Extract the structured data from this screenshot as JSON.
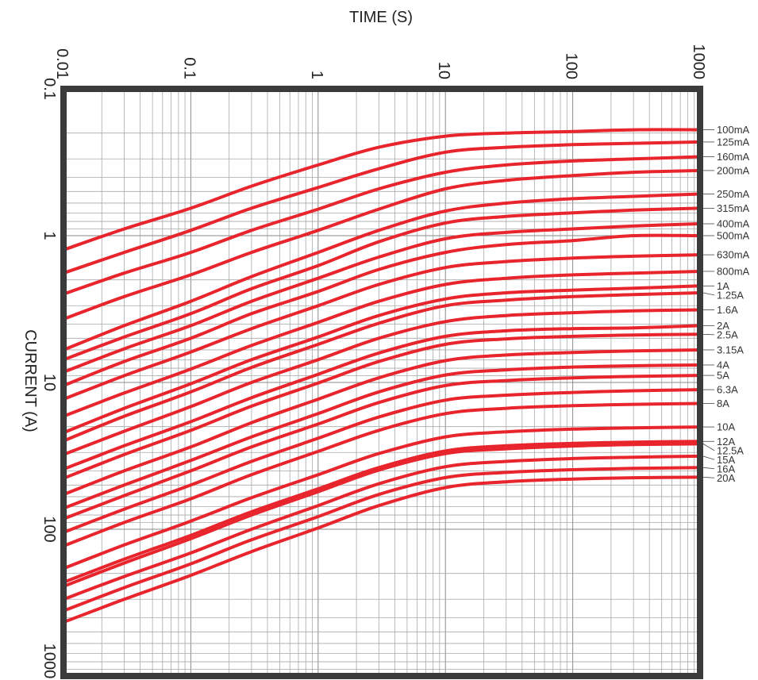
{
  "chart_data": {
    "type": "line",
    "title": "",
    "xlabel": "TIME (S)",
    "ylabel": "CURRENT (A)",
    "x_scale": "log",
    "y_scale": "log",
    "x_axis_position": "top",
    "y_axis_inverted": true,
    "xlim": [
      0.01,
      1000
    ],
    "ylim": [
      0.1,
      1000
    ],
    "x_ticks": [
      "0.01",
      "0.1",
      "1",
      "10",
      "100",
      "1000"
    ],
    "y_ticks": [
      "0.1",
      "1",
      "10",
      "100",
      "1000"
    ],
    "grid": true,
    "legend": "labels at right edge of each curve",
    "line_color": "#e8242c",
    "frame_color": "#3b3b3b",
    "x": [
      0.01,
      0.03,
      0.1,
      0.3,
      1,
      3,
      10,
      30,
      100,
      300,
      1000
    ],
    "series": [
      {
        "name": "100mA",
        "values": [
          1.25,
          0.9,
          0.65,
          0.46,
          0.33,
          0.25,
          0.21,
          0.2,
          0.195,
          0.19,
          0.19
        ]
      },
      {
        "name": "125mA",
        "values": [
          1.8,
          1.3,
          0.92,
          0.65,
          0.47,
          0.35,
          0.27,
          0.25,
          0.24,
          0.235,
          0.23
        ]
      },
      {
        "name": "160mA",
        "values": [
          2.5,
          1.8,
          1.3,
          0.92,
          0.66,
          0.48,
          0.37,
          0.33,
          0.31,
          0.3,
          0.29
        ]
      },
      {
        "name": "200mA",
        "values": [
          3.7,
          2.6,
          1.85,
          1.3,
          0.92,
          0.66,
          0.48,
          0.42,
          0.39,
          0.37,
          0.36
        ]
      },
      {
        "name": "250mA",
        "values": [
          6.0,
          4.1,
          2.8,
          1.9,
          1.3,
          0.92,
          0.68,
          0.6,
          0.56,
          0.54,
          0.52
        ]
      },
      {
        "name": "315mA",
        "values": [
          7.0,
          4.9,
          3.4,
          2.3,
          1.6,
          1.1,
          0.82,
          0.74,
          0.7,
          0.67,
          0.65
        ]
      },
      {
        "name": "400mA",
        "values": [
          8.5,
          5.9,
          4.1,
          2.8,
          1.95,
          1.4,
          1.05,
          0.95,
          0.9,
          0.86,
          0.83
        ]
      },
      {
        "name": "500mA",
        "values": [
          10.5,
          7.2,
          5.0,
          3.4,
          2.4,
          1.7,
          1.3,
          1.15,
          1.08,
          1.0,
          1.0
        ]
      },
      {
        "name": "630mA",
        "values": [
          13.0,
          9.0,
          6.2,
          4.3,
          3.0,
          2.15,
          1.65,
          1.5,
          1.42,
          1.38,
          1.35
        ]
      },
      {
        "name": "800mA",
        "values": [
          17.0,
          11.8,
          8.1,
          5.6,
          3.9,
          2.8,
          2.15,
          1.95,
          1.85,
          1.8,
          1.75
        ]
      },
      {
        "name": "1A",
        "values": [
          22.0,
          15.0,
          10.2,
          7.0,
          4.9,
          3.5,
          2.7,
          2.45,
          2.35,
          2.28,
          2.2
        ]
      },
      {
        "name": "1.25A",
        "values": [
          25.0,
          17.0,
          11.6,
          7.9,
          5.5,
          3.95,
          3.0,
          2.75,
          2.6,
          2.52,
          2.45
        ]
      },
      {
        "name": "1.6A",
        "values": [
          31.0,
          21.5,
          14.6,
          10.0,
          7.0,
          5.0,
          3.85,
          3.5,
          3.35,
          3.25,
          3.2
        ]
      },
      {
        "name": "2A",
        "values": [
          39.0,
          27.0,
          18.5,
          12.7,
          8.8,
          6.3,
          4.85,
          4.45,
          4.3,
          4.25,
          4.1
        ]
      },
      {
        "name": "2.5A",
        "values": [
          45.0,
          31.0,
          21.2,
          14.5,
          10.1,
          7.2,
          5.5,
          5.05,
          4.85,
          4.75,
          4.7
        ]
      },
      {
        "name": "3.15A",
        "values": [
          58.0,
          40.0,
          27.5,
          18.8,
          13.0,
          9.3,
          7.1,
          6.5,
          6.25,
          6.1,
          6.0
        ]
      },
      {
        "name": "4A",
        "values": [
          72.0,
          50.0,
          34.0,
          23.5,
          16.3,
          11.6,
          8.9,
          8.2,
          7.85,
          7.7,
          7.6
        ]
      },
      {
        "name": "5A",
        "values": [
          85.0,
          59.0,
          40.0,
          27.5,
          19.2,
          13.7,
          10.5,
          9.7,
          9.3,
          9.1,
          8.95
        ]
      },
      {
        "name": "6.3A",
        "values": [
          105.0,
          73.0,
          50.0,
          34.5,
          24.0,
          17.2,
          13.2,
          12.2,
          11.7,
          11.4,
          11.2
        ]
      },
      {
        "name": "8A",
        "values": [
          130.0,
          90.0,
          62.0,
          42.5,
          29.5,
          21.2,
          16.3,
          15.0,
          14.4,
          14.1,
          13.9
        ]
      },
      {
        "name": "10A",
        "values": [
          185.0,
          128.0,
          88.0,
          61.0,
          42.5,
          30.5,
          23.5,
          21.7,
          20.8,
          20.4,
          20.1
        ]
      },
      {
        "name": "12A",
        "values": [
          230.0,
          160.0,
          110.0,
          76.0,
          53.0,
          38.0,
          29.3,
          27.0,
          26.0,
          25.5,
          25.2
        ]
      },
      {
        "name": "12.5A",
        "values": [
          245.0,
          170.0,
          116.0,
          80.0,
          55.5,
          39.5,
          30.5,
          28.3,
          27.1,
          26.5,
          26.2
        ]
      },
      {
        "name": "15A",
        "values": [
          300.0,
          210.0,
          145.0,
          100.0,
          69.0,
          49.0,
          37.5,
          34.5,
          33.0,
          32.3,
          31.8
        ]
      },
      {
        "name": "16A",
        "values": [
          360.0,
          250.0,
          172.0,
          118.0,
          82.0,
          58.0,
          44.5,
          41.0,
          39.3,
          38.5,
          38.0
        ]
      },
      {
        "name": "20A",
        "values": [
          430.0,
          300.0,
          206.0,
          142.0,
          98.0,
          69.0,
          52.0,
          47.5,
          45.5,
          44.6,
          44.2
        ]
      }
    ]
  }
}
